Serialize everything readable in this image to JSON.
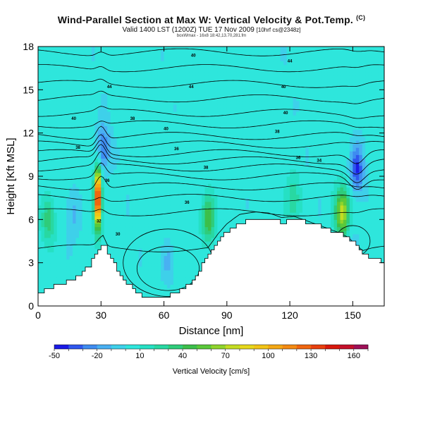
{
  "chart_data": {
    "type": "heatmap",
    "title": "Wind-Parallel Section at Max W: Vertical Velocity & Pot.Temp.",
    "title_mark": "(C)",
    "subtitle_main": "Valid 1400 LST (1200Z) TUE 17 Nov 2009",
    "subtitle_small": "[10hrf cs@2348z]",
    "info_line": "boxWmax - 16x8 18:42,13.70,281.fm",
    "xlabel": "Distance [nm]",
    "ylabel": "Height [Kft MSL]",
    "xlim": [
      0,
      165
    ],
    "ylim": [
      0,
      18
    ],
    "xticks": [
      0,
      30,
      60,
      90,
      120,
      150
    ],
    "yticks": [
      0,
      3,
      6,
      9,
      12,
      15,
      18
    ],
    "colorbar": {
      "label": "Vertical Velocity [cm/s]",
      "ticks": [
        -50,
        -20,
        10,
        40,
        70,
        100,
        130,
        160
      ],
      "levels": [
        -50,
        -40,
        -30,
        -20,
        -10,
        0,
        10,
        20,
        30,
        40,
        50,
        60,
        70,
        80,
        90,
        100,
        110,
        120,
        130,
        140,
        150,
        160,
        170
      ],
      "colors": [
        "#1a1ae6",
        "#2f57ee",
        "#3f8cf0",
        "#49b0f2",
        "#3ed0ea",
        "#2ee6dc",
        "#26e0c4",
        "#28d8a2",
        "#2fcc7a",
        "#3cbf4a",
        "#5ac83a",
        "#8fd42c",
        "#c4dc22",
        "#e6d81c",
        "#f2c416",
        "#f4a814",
        "#f48a12",
        "#f06610",
        "#e8400e",
        "#d8180c",
        "#c4102a",
        "#9e1058"
      ]
    },
    "terrain_tops_kft": [
      [
        0,
        0.9
      ],
      [
        8,
        1.4
      ],
      [
        18,
        2.0
      ],
      [
        24,
        2.8
      ],
      [
        28,
        3.8
      ],
      [
        31,
        4.2
      ],
      [
        34,
        3.5
      ],
      [
        38,
        2.4
      ],
      [
        42,
        1.6
      ],
      [
        47,
        0.8
      ],
      [
        56,
        0.6
      ],
      [
        64,
        0.8
      ],
      [
        70,
        1.3
      ],
      [
        76,
        2.3
      ],
      [
        81,
        3.7
      ],
      [
        86,
        4.6
      ],
      [
        90,
        5.2
      ],
      [
        96,
        5.8
      ],
      [
        104,
        6.0
      ],
      [
        110,
        6.0
      ],
      [
        116,
        5.8
      ],
      [
        122,
        6.0
      ],
      [
        128,
        5.8
      ],
      [
        135,
        5.5
      ],
      [
        142,
        5.1
      ],
      [
        148,
        4.7
      ],
      [
        153,
        4.0
      ],
      [
        157,
        3.3
      ],
      [
        165,
        3.1
      ]
    ],
    "updraft_cores": [
      {
        "x_nm": 28.5,
        "z_kft": 7.5,
        "w_cms": 150
      },
      {
        "x_nm": 81.0,
        "z_kft": 6.0,
        "w_cms": 45
      },
      {
        "x_nm": 145.0,
        "z_kft": 6.5,
        "w_cms": 75
      },
      {
        "x_nm": 5.0,
        "z_kft": 6.0,
        "w_cms": 30
      },
      {
        "x_nm": 122.0,
        "z_kft": 7.5,
        "w_cms": 25
      }
    ],
    "downdraft_cores": [
      {
        "x_nm": 31.0,
        "z_kft": 11.0,
        "w_cms": -35
      },
      {
        "x_nm": 152.0,
        "z_kft": 9.5,
        "w_cms": -45
      },
      {
        "x_nm": 62.0,
        "z_kft": 3.0,
        "w_cms": -18
      },
      {
        "x_nm": 17.0,
        "z_kft": 6.5,
        "w_cms": -15
      },
      {
        "x_nm": 150.0,
        "z_kft": 4.0,
        "w_cms": -12
      }
    ],
    "isentropes_kft": [
      4.0,
      6.5,
      7.5,
      8.3,
      9.0,
      9.6,
      10.1,
      10.6,
      11.2,
      11.8,
      12.6,
      13.4,
      14.4,
      15.4,
      16.5,
      17.6
    ],
    "isentrope_labels": [
      {
        "text": "44",
        "x_nm": 34,
        "z_kft": 15.2
      },
      {
        "text": "40",
        "x_nm": 17,
        "z_kft": 13.0
      },
      {
        "text": "38",
        "x_nm": 19,
        "z_kft": 11.0
      },
      {
        "text": "38",
        "x_nm": 45,
        "z_kft": 13.0
      },
      {
        "text": "40",
        "x_nm": 74,
        "z_kft": 17.4
      },
      {
        "text": "44",
        "x_nm": 73,
        "z_kft": 15.2
      },
      {
        "text": "40",
        "x_nm": 61,
        "z_kft": 12.3
      },
      {
        "text": "36",
        "x_nm": 66,
        "z_kft": 10.9
      },
      {
        "text": "38",
        "x_nm": 80,
        "z_kft": 9.6
      },
      {
        "text": "36",
        "x_nm": 71,
        "z_kft": 7.2
      },
      {
        "text": "40",
        "x_nm": 117,
        "z_kft": 15.2
      },
      {
        "text": "44",
        "x_nm": 120,
        "z_kft": 17.0
      },
      {
        "text": "38",
        "x_nm": 114,
        "z_kft": 12.1
      },
      {
        "text": "40",
        "x_nm": 118,
        "z_kft": 13.4
      },
      {
        "text": "36",
        "x_nm": 124,
        "z_kft": 10.3
      },
      {
        "text": "34",
        "x_nm": 134,
        "z_kft": 10.1
      },
      {
        "text": "36",
        "x_nm": 33,
        "z_kft": 8.7
      },
      {
        "text": "32",
        "x_nm": 29,
        "z_kft": 5.9
      },
      {
        "text": "30",
        "x_nm": 38,
        "z_kft": 5.0
      }
    ]
  }
}
